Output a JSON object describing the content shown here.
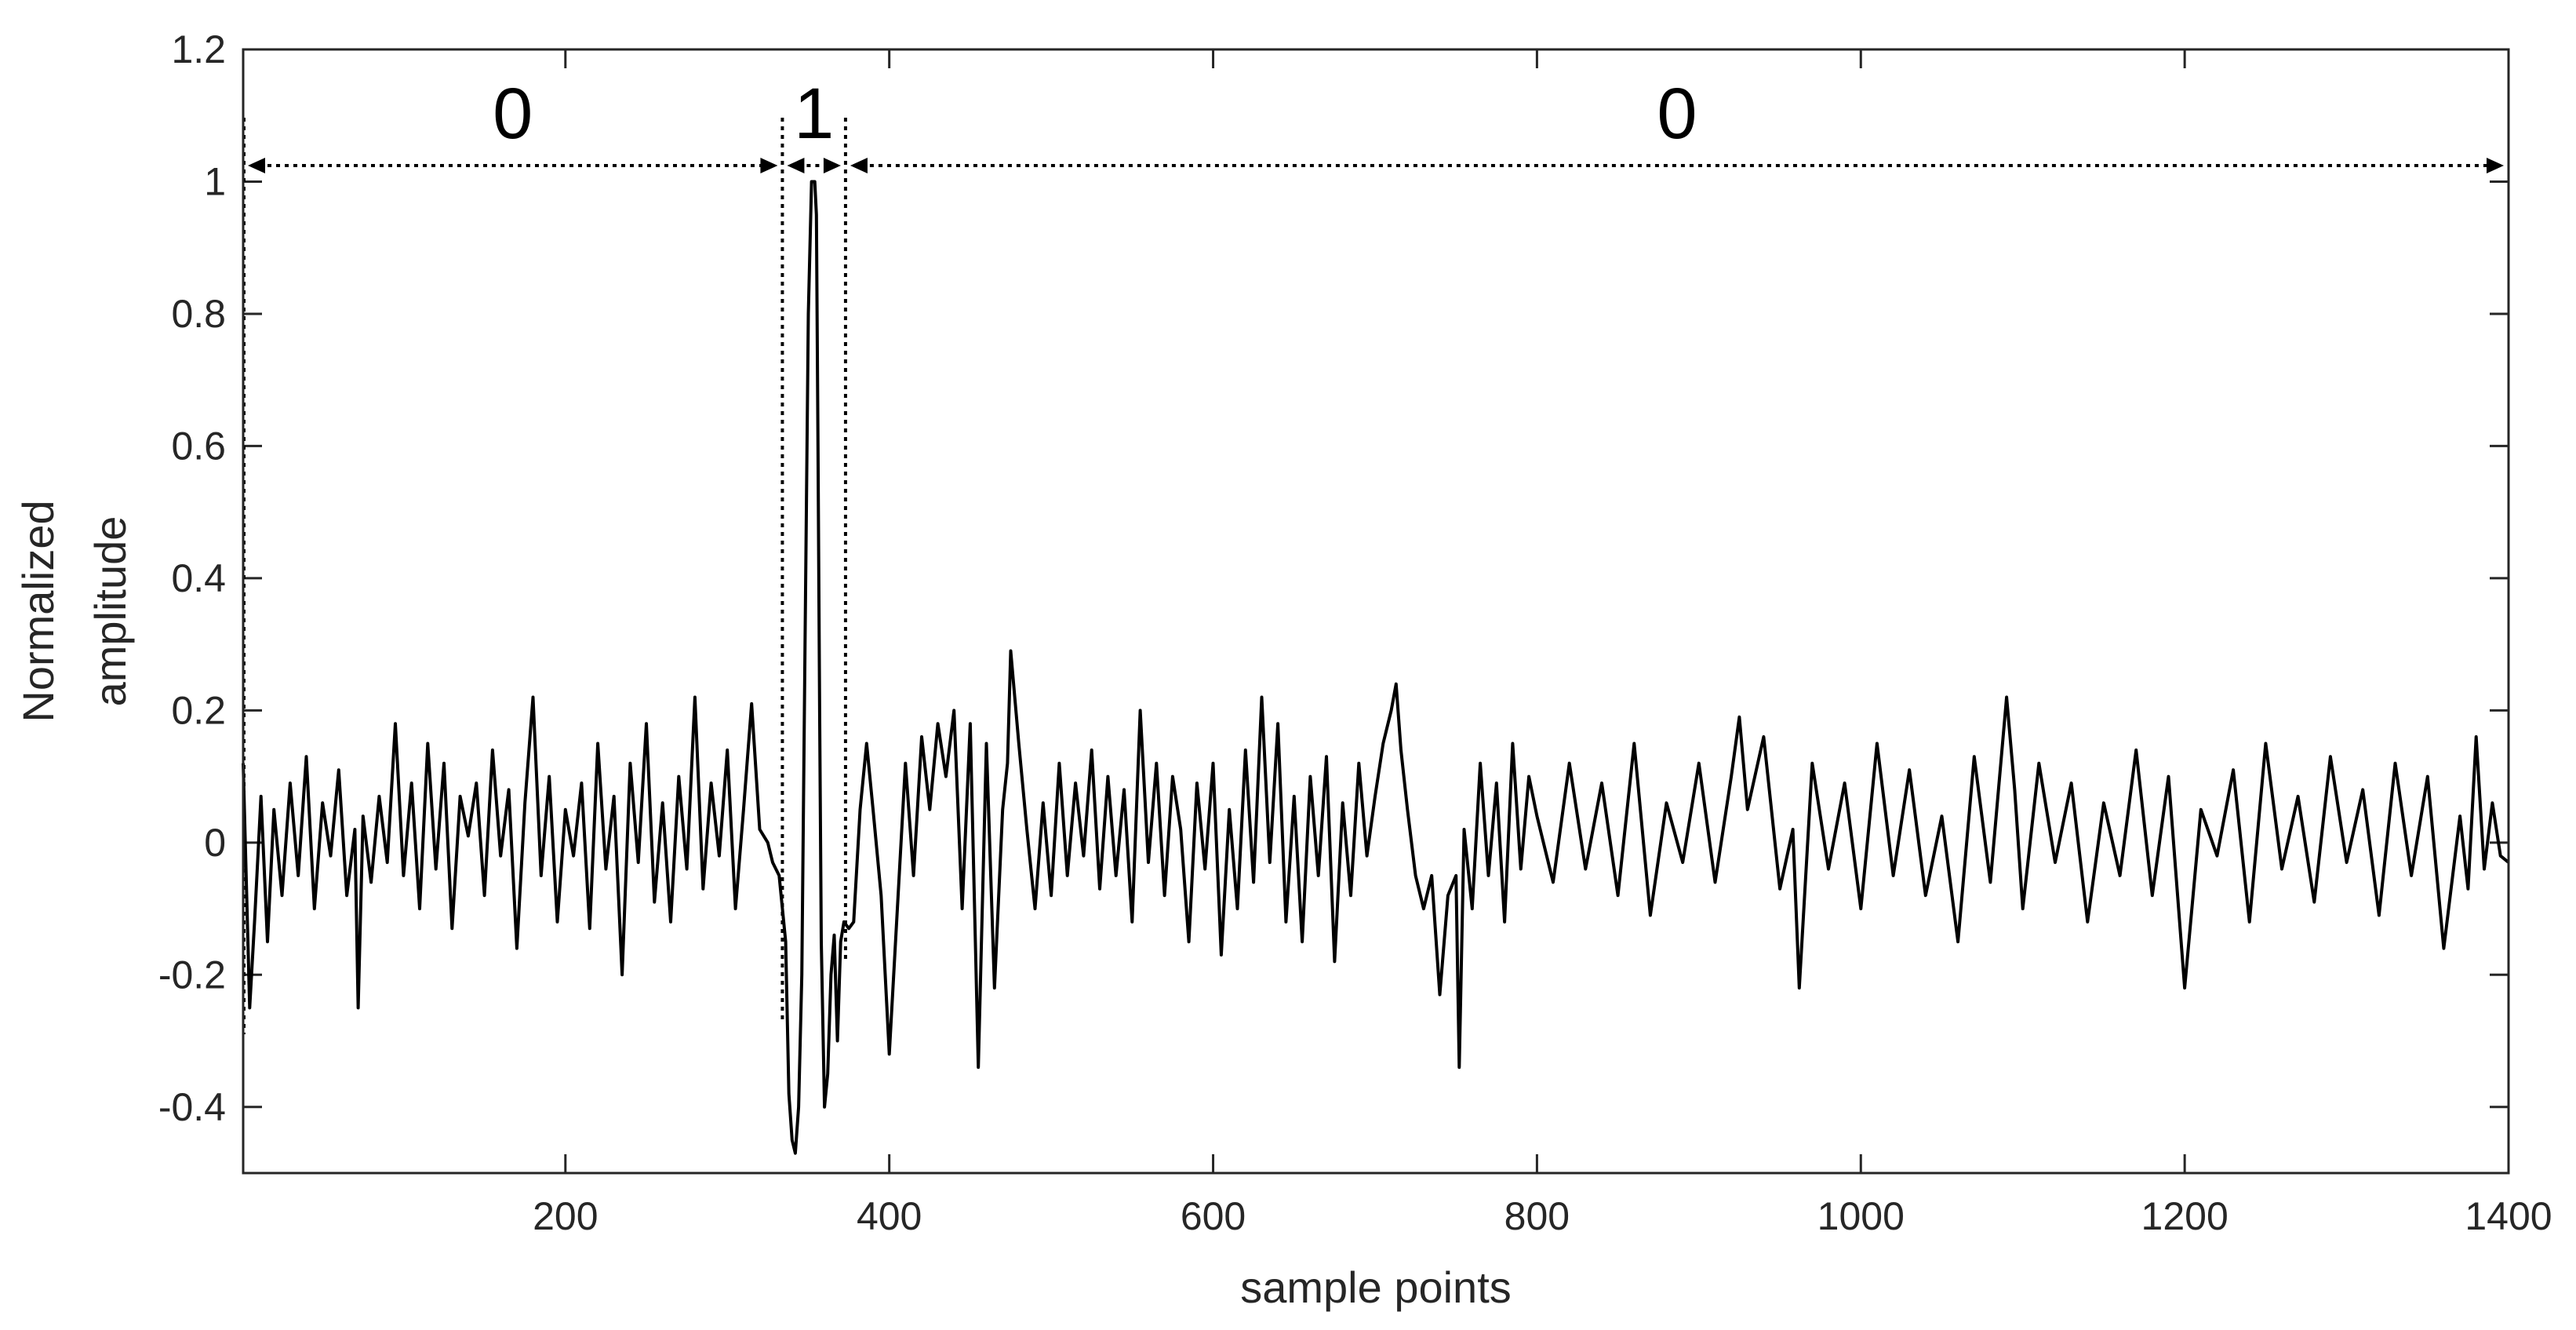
{
  "chart_data": {
    "type": "line",
    "title": "",
    "xlabel": "sample points",
    "ylabel_lines": [
      "Normalized",
      "amplitude"
    ],
    "xlim": [
      1,
      1400
    ],
    "ylim": [
      -0.5,
      1.2
    ],
    "x_ticks": [
      200,
      400,
      600,
      800,
      1000,
      1200,
      1400
    ],
    "x_tick_labels": [
      "200",
      "400",
      "600",
      "800",
      "1000",
      "1200",
      "1400"
    ],
    "y_ticks": [
      -0.4,
      -0.2,
      0,
      0.2,
      0.4,
      0.6,
      0.8,
      1,
      1.2
    ],
    "y_tick_labels": [
      "-0.4",
      "-0.2",
      "0",
      "0.2",
      "0.4",
      "0.6",
      "0.8",
      "1",
      "1.2"
    ],
    "grid": false,
    "legend": "none",
    "line_color": "#000000",
    "series": [
      {
        "x": [
          1,
          5,
          8,
          12,
          16,
          20,
          25,
          30,
          35,
          40,
          45,
          50,
          55,
          60,
          65,
          70,
          72,
          75,
          80,
          85,
          90,
          95,
          100,
          105,
          110,
          115,
          120,
          125,
          130,
          135,
          140,
          145,
          150,
          155,
          160,
          165,
          170,
          175,
          180,
          185,
          190,
          195,
          200,
          205,
          210,
          215,
          220,
          225,
          230,
          235,
          240,
          245,
          250,
          255,
          260,
          265,
          270,
          275,
          280,
          285,
          290,
          295,
          300,
          305,
          310,
          315,
          320,
          325,
          328,
          332,
          336,
          338,
          340,
          342,
          344,
          346,
          348,
          350,
          352,
          354,
          355,
          356,
          357,
          358,
          360,
          362,
          364,
          366,
          368,
          370,
          372,
          375,
          378,
          382,
          386,
          390,
          395,
          400,
          405,
          410,
          415,
          420,
          425,
          430,
          435,
          440,
          445,
          450,
          455,
          460,
          465,
          470,
          473,
          475,
          480,
          485,
          490,
          495,
          500,
          505,
          510,
          515,
          520,
          525,
          530,
          535,
          540,
          545,
          550,
          555,
          560,
          565,
          570,
          575,
          580,
          585,
          590,
          595,
          600,
          605,
          610,
          615,
          620,
          625,
          630,
          635,
          640,
          645,
          650,
          655,
          660,
          665,
          670,
          675,
          680,
          685,
          690,
          695,
          700,
          705,
          710,
          713,
          716,
          720,
          725,
          730,
          735,
          740,
          745,
          750,
          752,
          755,
          760,
          765,
          770,
          775,
          780,
          785,
          790,
          795,
          800,
          810,
          820,
          830,
          840,
          850,
          860,
          870,
          880,
          890,
          900,
          910,
          920,
          925,
          930,
          940,
          950,
          958,
          962,
          970,
          980,
          990,
          1000,
          1010,
          1020,
          1030,
          1040,
          1050,
          1060,
          1070,
          1080,
          1090,
          1095,
          1100,
          1110,
          1120,
          1130,
          1140,
          1150,
          1160,
          1170,
          1180,
          1190,
          1200,
          1210,
          1220,
          1230,
          1240,
          1250,
          1260,
          1270,
          1280,
          1290,
          1300,
          1310,
          1320,
          1330,
          1340,
          1350,
          1360,
          1370,
          1375,
          1380,
          1385,
          1390,
          1395,
          1400
        ],
        "y": [
          0.12,
          -0.25,
          -0.12,
          0.07,
          -0.15,
          0.05,
          -0.08,
          0.09,
          -0.05,
          0.13,
          -0.1,
          0.06,
          -0.02,
          0.11,
          -0.08,
          0.02,
          -0.25,
          0.04,
          -0.06,
          0.07,
          -0.03,
          0.18,
          -0.05,
          0.09,
          -0.1,
          0.15,
          -0.04,
          0.12,
          -0.13,
          0.07,
          0.01,
          0.09,
          -0.08,
          0.14,
          -0.02,
          0.08,
          -0.16,
          0.06,
          0.22,
          -0.05,
          0.1,
          -0.12,
          0.05,
          -0.02,
          0.09,
          -0.13,
          0.15,
          -0.04,
          0.07,
          -0.2,
          0.12,
          -0.03,
          0.18,
          -0.09,
          0.06,
          -0.12,
          0.1,
          -0.04,
          0.22,
          -0.07,
          0.09,
          -0.02,
          0.14,
          -0.1,
          0.05,
          0.21,
          0.02,
          0.0,
          -0.03,
          -0.05,
          -0.15,
          -0.38,
          -0.45,
          -0.47,
          -0.4,
          -0.2,
          0.3,
          0.8,
          1.0,
          1.0,
          0.95,
          0.6,
          0.2,
          -0.15,
          -0.4,
          -0.35,
          -0.2,
          -0.14,
          -0.3,
          -0.15,
          -0.12,
          -0.13,
          -0.12,
          0.05,
          0.15,
          0.05,
          -0.08,
          -0.32,
          -0.1,
          0.12,
          -0.05,
          0.16,
          0.05,
          0.18,
          0.1,
          0.2,
          -0.1,
          0.18,
          -0.34,
          0.15,
          -0.22,
          0.05,
          0.12,
          0.29,
          0.15,
          0.02,
          -0.1,
          0.06,
          -0.08,
          0.12,
          -0.05,
          0.09,
          -0.02,
          0.14,
          -0.07,
          0.1,
          -0.05,
          0.08,
          -0.12,
          0.2,
          -0.03,
          0.12,
          -0.08,
          0.1,
          0.02,
          -0.15,
          0.09,
          -0.04,
          0.12,
          -0.17,
          0.05,
          -0.1,
          0.14,
          -0.06,
          0.22,
          -0.03,
          0.18,
          -0.12,
          0.07,
          -0.15,
          0.1,
          -0.05,
          0.13,
          -0.18,
          0.06,
          -0.08,
          0.12,
          -0.02,
          0.07,
          0.15,
          0.2,
          0.24,
          0.14,
          0.05,
          -0.05,
          -0.1,
          -0.05,
          -0.23,
          -0.08,
          -0.05,
          -0.34,
          0.02,
          -0.1,
          0.12,
          -0.05,
          0.09,
          -0.12,
          0.15,
          -0.04,
          0.1,
          0.04,
          -0.06,
          0.12,
          -0.04,
          0.09,
          -0.08,
          0.15,
          -0.11,
          0.06,
          -0.03,
          0.12,
          -0.06,
          0.1,
          0.19,
          0.05,
          0.16,
          -0.07,
          0.02,
          -0.22,
          0.12,
          -0.04,
          0.09,
          -0.1,
          0.15,
          -0.05,
          0.11,
          -0.08,
          0.04,
          -0.15,
          0.13,
          -0.06,
          0.22,
          0.08,
          -0.1,
          0.12,
          -0.03,
          0.09,
          -0.12,
          0.06,
          -0.05,
          0.14,
          -0.08,
          0.1,
          -0.22,
          0.05,
          -0.02,
          0.11,
          -0.12,
          0.15,
          -0.04,
          0.07,
          -0.09,
          0.13,
          -0.03,
          0.08,
          -0.11,
          0.12,
          -0.05,
          0.1,
          -0.16,
          0.04,
          -0.07,
          0.16,
          -0.04,
          0.06,
          -0.02,
          -0.03
        ]
      }
    ],
    "annotations": [
      {
        "label": "0",
        "x_start": 1,
        "x_end": 334
      },
      {
        "label": "1",
        "x_start": 334,
        "x_end": 373
      },
      {
        "label": "0",
        "x_start": 373,
        "x_end": 1400
      }
    ]
  }
}
